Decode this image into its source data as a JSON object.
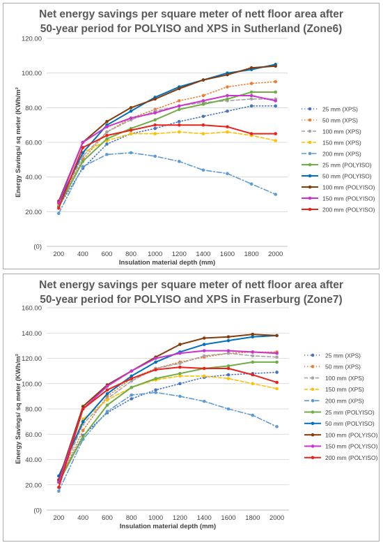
{
  "chart_data": [
    {
      "type": "line",
      "title_lines": [
        "Net energy savings per square meter of nett floor area after",
        "50-year period for POLYISO and XPS in Sutherland (Zone6)"
      ],
      "xlabel": "Insulation material depth (mm)",
      "ylabel": "Energy Savings/ sq meter (KWh/m²",
      "x": [
        200,
        400,
        600,
        800,
        1000,
        1200,
        1400,
        1600,
        1800,
        2000
      ],
      "ylim": [
        0,
        120
      ],
      "yticks": [
        "(0)",
        "20.00",
        "40.00",
        "60.00",
        "80.00",
        "100.00",
        "120.00"
      ],
      "grid": true,
      "legend_position": "right",
      "series": [
        {
          "name": "25 mm (XPS)",
          "color": "#4472C4",
          "dash": "dot",
          "values": [
            23,
            45,
            59,
            65,
            68,
            72,
            75,
            78,
            81,
            81
          ]
        },
        {
          "name": "50 mm (XPS)",
          "color": "#ED7D31",
          "dash": "dot",
          "values": [
            24,
            50,
            66,
            74,
            79,
            84,
            87,
            92,
            94,
            95
          ]
        },
        {
          "name": "100 mm (XPS)",
          "color": "#A5A5A5",
          "dash": "dash",
          "values": [
            24,
            52,
            66,
            73,
            78,
            81,
            83,
            84,
            85,
            85
          ]
        },
        {
          "name": "150 mm (XPS)",
          "color": "#FFC000",
          "dash": "dash",
          "values": [
            24,
            54,
            61,
            65,
            65,
            66,
            65,
            66,
            64,
            61
          ]
        },
        {
          "name": "200 mm (XPS)",
          "color": "#5B9BD5",
          "dash": "dashdot",
          "values": [
            19,
            46,
            53,
            54,
            52,
            49,
            44,
            42,
            36,
            30
          ]
        },
        {
          "name": "25 mm (POLYISO)",
          "color": "#70AD47",
          "dash": "solid",
          "values": [
            23,
            49,
            62,
            68,
            73,
            79,
            82,
            85,
            89,
            89
          ]
        },
        {
          "name": "50 mm (POLYISO)",
          "color": "#0070C0",
          "dash": "solid",
          "values": [
            25,
            54,
            70,
            78,
            86,
            92,
            96,
            100,
            102,
            105
          ]
        },
        {
          "name": "100 mm (POLYISO)",
          "color": "#843C0C",
          "dash": "solid",
          "values": [
            26,
            60,
            72,
            80,
            85,
            91,
            96,
            99,
            103,
            104
          ]
        },
        {
          "name": "150 mm (POLYISO)",
          "color": "#CC33CC",
          "dash": "solid",
          "values": [
            25,
            60,
            69,
            74,
            77,
            81,
            84,
            87,
            87,
            84
          ]
        },
        {
          "name": "200 mm (POLYISO)",
          "color": "#E8231A",
          "dash": "solid",
          "values": [
            22,
            57,
            64,
            67,
            70,
            70,
            70,
            69,
            65,
            65
          ]
        }
      ]
    },
    {
      "type": "line",
      "title_lines": [
        "Net energy savings per square meter of nett floor area after",
        "50-year period for POLYISO and XPS in Fraserburg (Zone7)"
      ],
      "xlabel": "Insulation material depth (mm)",
      "ylabel": "Energy Savings/ sq meter (KWh/m²",
      "x": [
        200,
        400,
        600,
        800,
        1000,
        1200,
        1400,
        1600,
        1800,
        2000
      ],
      "ylim": [
        0,
        160
      ],
      "yticks": [
        "(0)",
        "20.00",
        "40.00",
        "60.00",
        "80.00",
        "100.00",
        "120.00",
        "140.00",
        "160.00"
      ],
      "grid": true,
      "legend_position": "right",
      "series": [
        {
          "name": "25 mm (XPS)",
          "color": "#4472C4",
          "dash": "dot",
          "values": [
            23,
            59,
            77,
            88,
            95,
            100,
            105,
            107,
            108,
            109
          ]
        },
        {
          "name": "50 mm (XPS)",
          "color": "#ED7D31",
          "dash": "dot",
          "values": [
            22,
            63,
            90,
            104,
            112,
            117,
            121,
            124,
            125,
            125
          ]
        },
        {
          "name": "100 mm (XPS)",
          "color": "#A5A5A5",
          "dash": "dash",
          "values": [
            23,
            68,
            88,
            102,
            112,
            116,
            122,
            124,
            122,
            121
          ]
        },
        {
          "name": "150 mm (XPS)",
          "color": "#FFC000",
          "dash": "dash",
          "values": [
            24,
            72,
            87,
            97,
            103,
            106,
            106,
            104,
            100,
            96
          ]
        },
        {
          "name": "200 mm (XPS)",
          "color": "#5B9BD5",
          "dash": "dashdot",
          "values": [
            15,
            56,
            78,
            91,
            93,
            90,
            86,
            80,
            75,
            66
          ]
        },
        {
          "name": "25 mm (POLYISO)",
          "color": "#70AD47",
          "dash": "solid",
          "values": [
            22,
            58,
            83,
            97,
            104,
            108,
            112,
            114,
            117,
            117
          ]
        },
        {
          "name": "50 mm (POLYISO)",
          "color": "#0070C0",
          "dash": "solid",
          "values": [
            27,
            70,
            92,
            106,
            117,
            125,
            131,
            134,
            137,
            138
          ]
        },
        {
          "name": "100 mm (POLYISO)",
          "color": "#843C0C",
          "dash": "solid",
          "values": [
            24,
            82,
            99,
            110,
            121,
            131,
            136,
            137,
            139,
            138
          ]
        },
        {
          "name": "150 mm (POLYISO)",
          "color": "#CC33CC",
          "dash": "solid",
          "values": [
            22,
            80,
            98,
            110,
            120,
            124,
            126,
            126,
            125,
            124
          ]
        },
        {
          "name": "200 mm (POLYISO)",
          "color": "#E8231A",
          "dash": "solid",
          "values": [
            18,
            80,
            95,
            104,
            111,
            113,
            112,
            112,
            107,
            101
          ]
        }
      ]
    }
  ]
}
